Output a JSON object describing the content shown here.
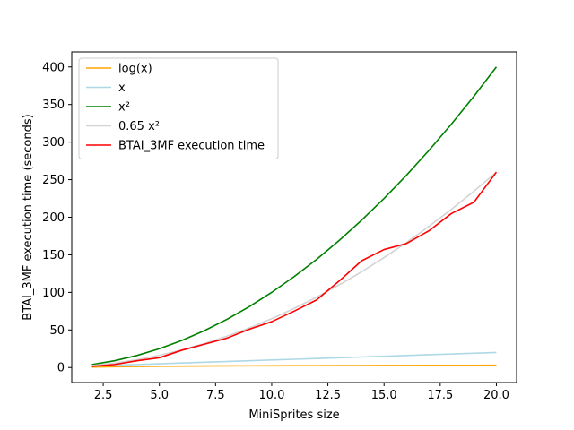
{
  "chart_data": {
    "type": "line",
    "title": "",
    "xlabel": "MiniSprites size",
    "ylabel": "BTAI_3MF execution time (seconds)",
    "xlim": [
      1.1,
      20.9
    ],
    "ylim": [
      -20,
      420
    ],
    "xticks": [
      2.5,
      5.0,
      7.5,
      10.0,
      12.5,
      15.0,
      17.5,
      20.0
    ],
    "xtick_labels": [
      "2.5",
      "5.0",
      "7.5",
      "10.0",
      "12.5",
      "15.0",
      "17.5",
      "20.0"
    ],
    "yticks": [
      0,
      50,
      100,
      150,
      200,
      250,
      300,
      350,
      400
    ],
    "ytick_labels": [
      "0",
      "50",
      "100",
      "150",
      "200",
      "250",
      "300",
      "350",
      "400"
    ],
    "grid": false,
    "legend_position": "top-left",
    "x": [
      2,
      3,
      4,
      5,
      6,
      7,
      8,
      9,
      10,
      11,
      12,
      13,
      14,
      15,
      16,
      17,
      18,
      19,
      20
    ],
    "series": [
      {
        "name": "log(x)",
        "color": "#ffa500",
        "values": [
          0.69,
          1.1,
          1.39,
          1.61,
          1.79,
          1.95,
          2.08,
          2.2,
          2.3,
          2.4,
          2.48,
          2.56,
          2.64,
          2.71,
          2.77,
          2.83,
          2.89,
          2.94,
          3.0
        ]
      },
      {
        "name": "x",
        "color": "#add8e6",
        "values": [
          2,
          3,
          4,
          5,
          6,
          7,
          8,
          9,
          10,
          11,
          12,
          13,
          14,
          15,
          16,
          17,
          18,
          19,
          20
        ]
      },
      {
        "name": "x²",
        "color": "#008000",
        "values": [
          4,
          9,
          16,
          25,
          36,
          49,
          64,
          81,
          100,
          121,
          144,
          169,
          196,
          225,
          256,
          289,
          324,
          361,
          400
        ]
      },
      {
        "name": "0.65 x²",
        "color": "#d3d3d3",
        "values": [
          2.6,
          5.85,
          10.4,
          16.25,
          23.4,
          31.85,
          41.6,
          52.65,
          65,
          78.65,
          93.6,
          109.85,
          127.4,
          146.25,
          166.4,
          187.85,
          210.6,
          234.65,
          260
        ]
      },
      {
        "name": "BTAI_3MF execution time",
        "color": "#ff0000",
        "values": [
          1.5,
          4,
          9,
          13,
          23,
          31,
          39,
          51,
          61,
          75,
          90,
          115,
          142,
          157,
          165,
          182,
          205,
          220,
          260
        ]
      }
    ]
  }
}
